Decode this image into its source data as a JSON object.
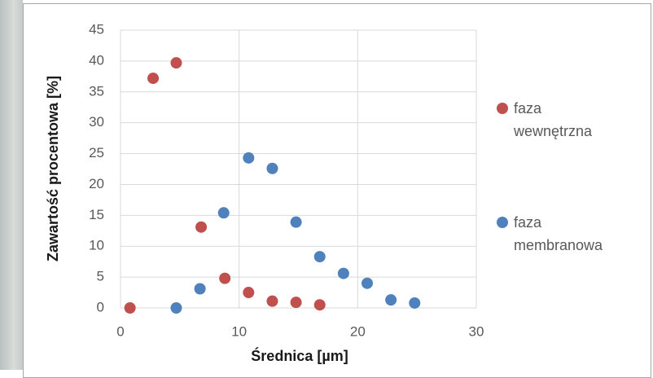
{
  "chart_data": {
    "type": "scatter",
    "x_label": "Średnica [µm]",
    "y_label": "Zawartość procentowa [%]",
    "xlim": [
      0,
      30
    ],
    "xticks": [
      0,
      10,
      20,
      30
    ],
    "ylim": [
      0,
      45
    ],
    "yticks": [
      0,
      5,
      10,
      15,
      20,
      25,
      30,
      35,
      40,
      45
    ],
    "grid": true,
    "legend": "right",
    "series": [
      {
        "name": "faza wewnętrzna",
        "color": "#c0504d",
        "x": [
          0.8,
          2.75,
          4.7,
          6.8,
          8.8,
          10.8,
          12.8,
          14.8,
          16.8
        ],
        "values": [
          0,
          37.2,
          39.7,
          13.1,
          4.8,
          2.5,
          1.1,
          0.9,
          0.5
        ]
      },
      {
        "name": "faza membranowa",
        "color": "#4f81bd",
        "x": [
          4.7,
          6.7,
          8.7,
          10.8,
          12.8,
          14.8,
          16.8,
          18.8,
          20.8,
          22.8,
          24.8
        ],
        "values": [
          0,
          3.1,
          15.4,
          24.3,
          22.6,
          13.9,
          8.3,
          5.6,
          4.0,
          1.3,
          0.8
        ]
      }
    ]
  }
}
